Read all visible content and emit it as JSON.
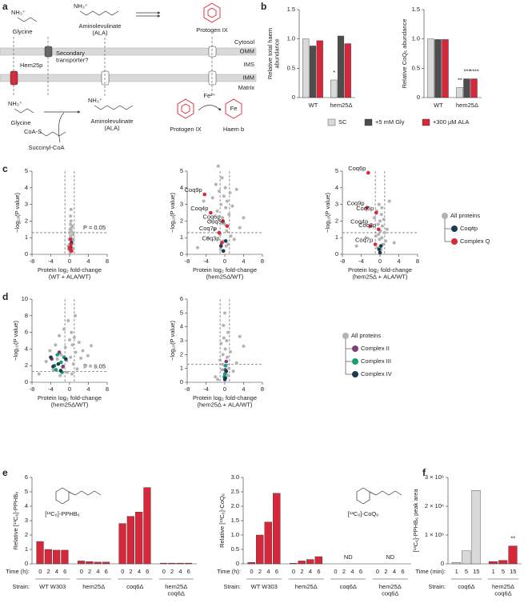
{
  "diagram": {
    "panel_label": "a",
    "nh3_top": "NH₃⁺",
    "glycine_top": "Glycine",
    "nh3_ala_top": "NH₃⁺",
    "ala_top": "Aminolevulinate\n(ALA)",
    "protogen_top": "Protogen IX",
    "cytosol": "Cytosol",
    "omm": "OMM",
    "ims": "IMS",
    "imm": "IMM",
    "matrix": "Matrix",
    "hem25p": "Hem25p",
    "transporter": "Secondary\ntransporter?",
    "nh3_bottom": "NH₃⁺",
    "glycine_bottom": "Glycine",
    "nh3_ala_bottom": "NH₃⁺",
    "ala_bottom": "Aminolevulinate\n(ALA)",
    "coa": "CoA-S",
    "succinyl": "Succinyl-CoA",
    "protogen_bottom": "Protogen IX",
    "fe": "Fe²⁺",
    "fe_ring": "Fe",
    "haem": "Haem b"
  },
  "panel_labels": {
    "b": "b",
    "c": "c",
    "d": "d",
    "e": "e",
    "f": "f"
  },
  "chart_data": [
    {
      "type": "bar",
      "ylabel": "Relative total haem\nabundance",
      "categories": [
        "WT",
        "hem25Δ"
      ],
      "series": [
        {
          "name": "SC",
          "color": "#d9d9d9",
          "values": [
            1.0,
            0.3
          ],
          "significance": [
            null,
            "*"
          ]
        },
        {
          "name": "+5 mM Gly",
          "color": "#4d4d4d",
          "values": [
            0.88,
            1.05
          ],
          "significance": [
            null,
            null
          ]
        },
        {
          "name": "+300 µM ALA",
          "color": "#d6283a",
          "values": [
            0.97,
            0.92
          ],
          "significance": [
            null,
            null
          ]
        }
      ],
      "ylim": [
        0,
        1.5
      ],
      "yticks": [
        0,
        0.5,
        {
          "value": 1,
          "label": "1.0"
        },
        1.5
      ],
      "legend": "bottom"
    },
    {
      "type": "bar",
      "ylabel": "Relative CoQ₆ abundance",
      "categories": [
        "WT",
        "hem25Δ"
      ],
      "series": [
        {
          "color": "#d9d9d9",
          "values": [
            1.0,
            0.17
          ],
          "significance": [
            null,
            "**"
          ]
        },
        {
          "color": "#4d4d4d",
          "values": [
            0.99,
            0.32
          ],
          "significance": [
            null,
            "***"
          ]
        },
        {
          "color": "#d6283a",
          "values": [
            0.99,
            0.32
          ],
          "significance": [
            null,
            "****"
          ]
        }
      ],
      "ylim": [
        0,
        1.5
      ],
      "yticks": [
        0,
        0.5,
        {
          "value": 1,
          "label": "1.0"
        },
        1.5
      ]
    },
    {
      "type": "scatter",
      "xlabel": "Protein log₂ fold-change\n(WT + ALA/WT)",
      "ylabel": "−log₁₀(P value)",
      "xlim": [
        -8,
        8
      ],
      "xticks": [
        -8,
        -4,
        0,
        4,
        8
      ],
      "ylim": [
        0,
        5
      ],
      "yticks": [
        0,
        1,
        2,
        3,
        4,
        5
      ],
      "vlines": [
        -1,
        1
      ],
      "hline": 1.3,
      "hline_label": "P = 0.05",
      "series": [
        {
          "color": "#b3b3b3",
          "x": [
            0.1,
            0.3,
            -0.2,
            0.5,
            0.2,
            0.4,
            0.0,
            0.6,
            -0.1,
            0.3,
            0.2,
            0.7,
            0.5,
            0.1,
            0.4,
            0.3,
            -0.3,
            0.2,
            0.6,
            0.0,
            0.8,
            0.3,
            0.1,
            0.4
          ],
          "values": [
            0.2,
            0.5,
            0.3,
            0.8,
            1.1,
            1.4,
            0.6,
            1.7,
            0.9,
            2.0,
            2.3,
            1.2,
            0.4,
            1.5,
            0.7,
            1.0,
            0.5,
            1.8,
            0.3,
            1.3,
            0.9,
            2.7,
            0.1,
            1.6
          ]
        },
        {
          "color": "#1d3a4f",
          "x": [
            0.2,
            0.4
          ],
          "values": [
            0.4,
            0.7
          ]
        },
        {
          "color": "#d6283a",
          "x": [
            0.1,
            0.3,
            0.2,
            0.0,
            0.4
          ],
          "values": [
            0.3,
            0.6,
            0.9,
            0.4,
            0.2
          ]
        }
      ]
    },
    {
      "type": "scatter",
      "xlabel": "Protein log₂ fold-change\n(hem25Δ/WT)",
      "ylabel": "−log₁₀(P value)",
      "xlim": [
        -8,
        8
      ],
      "xticks": [
        -8,
        -4,
        0,
        4,
        8
      ],
      "ylim": [
        0,
        5
      ],
      "yticks": [
        0,
        1,
        2,
        3,
        4,
        5
      ],
      "vlines": [
        -1,
        1
      ],
      "hline": 1.3,
      "series": [
        {
          "color": "#b3b3b3",
          "x": [
            -5.8,
            -4.5,
            -3.6,
            -3.0,
            -2.6,
            -2.2,
            -1.9,
            -1.6,
            -1.4,
            -1.2,
            -1.0,
            -0.8,
            -0.6,
            -0.5,
            -0.3,
            -0.2,
            0,
            0.1,
            0.2,
            0.4,
            0.5,
            0.7,
            0.9,
            1.1,
            1.3,
            1.6,
            2.0,
            2.5,
            3.2,
            4.0,
            -0.9,
            0.3
          ],
          "values": [
            0.4,
            3.2,
            1.0,
            2.0,
            3.4,
            1.5,
            4.2,
            2.6,
            5.3,
            3.8,
            1.2,
            3.0,
            4.6,
            2.2,
            0.8,
            3.5,
            1.8,
            4.0,
            2.8,
            1.4,
            3.2,
            0.6,
            2.4,
            3.7,
            1.1,
            2.9,
            0.9,
            3.9,
            1.6,
            2.2,
            0.3,
            0.5
          ]
        },
        {
          "color": "#1d3a4f",
          "x": [
            -0.8,
            -0.3,
            0.2
          ],
          "values": [
            0.5,
            0.2,
            0.8
          ]
        },
        {
          "color": "#d6283a",
          "x": [
            -4.3,
            -3.0,
            -0.4,
            0.5,
            -1.2,
            -0.6
          ],
          "values": [
            3.6,
            2.5,
            2.0,
            1.7,
            1.3,
            0.7
          ],
          "labels": [
            "Coq9p",
            "Coq4p",
            "Coq6p",
            "Coq5p",
            "Coq7p",
            "Coq3p"
          ]
        }
      ]
    },
    {
      "type": "scatter",
      "xlabel": "Protein log₂ fold-change\n(hem25Δ + ALA/WT)",
      "ylabel": "−log₁₀(P value)",
      "xlim": [
        -8,
        8
      ],
      "xticks": [
        -8,
        -4,
        0,
        4,
        8
      ],
      "ylim": [
        0,
        5
      ],
      "yticks": [
        0,
        1,
        2,
        3,
        4,
        5
      ],
      "vlines": [
        -1,
        1
      ],
      "hline": 1.3,
      "legend": "right",
      "series": [
        {
          "name": "All proteins",
          "color": "#b3b3b3",
          "x": [
            -5.0,
            -3.0,
            -1.2,
            -0.9,
            -0.7,
            -0.5,
            -0.4,
            -0.2,
            -0.1,
            0,
            0.1,
            0.2,
            0.3,
            0.4,
            0.5,
            0.6,
            0.8,
            1.0,
            1.2,
            1.5,
            2.0,
            3.0,
            -0.3,
            0.0,
            0.4
          ],
          "values": [
            0.5,
            1.0,
            2.2,
            1.1,
            2.6,
            0.4,
            1.8,
            3.0,
            0.9,
            2.0,
            1.4,
            0.3,
            2.4,
            1.0,
            1.7,
            0.6,
            2.1,
            1.3,
            0.8,
            1.5,
            3.2,
            0.7,
            1.2,
            0.2,
            2.8
          ]
        },
        {
          "name": "Coq#p",
          "color": "#1d3a4f",
          "x": [
            -0.2,
            0.2,
            0.0
          ],
          "values": [
            0.3,
            0.5,
            0.1
          ]
        },
        {
          "name": "Complex Q",
          "color": "#d6283a",
          "x": [
            -2.5,
            -2.8,
            -0.8,
            -2.0,
            -0.3,
            -1.0
          ],
          "values": [
            4.9,
            2.8,
            2.5,
            1.7,
            1.5,
            0.6
          ],
          "labels": [
            "Coq6p",
            "Coq9p",
            "Coq5p",
            "Coq4p",
            "Coq3p",
            "Coq7p"
          ]
        }
      ]
    },
    {
      "type": "scatter",
      "xlabel": "Protein log₂ fold-change\n(hem25Δ/WT)",
      "ylabel": "−log₁₀(P value)",
      "xlim": [
        -8,
        8
      ],
      "xticks": [
        -8,
        -4,
        0,
        4,
        8
      ],
      "ylim": [
        0,
        10
      ],
      "yticks": [
        0,
        2,
        4,
        6,
        8,
        10
      ],
      "vlines": [
        -1,
        1
      ],
      "hline": 1.3,
      "hline_label": "P = 0.05",
      "series": [
        {
          "color": "#b3b3b3",
          "x": [
            -6.5,
            -5.0,
            -4.2,
            -3.5,
            -3.0,
            -2.6,
            -2.2,
            -1.8,
            -1.5,
            -1.2,
            -0.9,
            -0.6,
            -0.3,
            0,
            0.2,
            0.4,
            0.6,
            0.8,
            1.0,
            1.3,
            1.6,
            2.0,
            2.4,
            2.8,
            3.3,
            3.9,
            4.6,
            5.5,
            -0.5,
            0.5,
            1.2,
            -2.0
          ],
          "values": [
            1.0,
            2.5,
            3.8,
            1.5,
            4.5,
            2.8,
            5.6,
            3.3,
            1.8,
            6.4,
            4.2,
            2.6,
            7.4,
            5.1,
            3.0,
            6.0,
            4.5,
            2.2,
            5.4,
            3.6,
            1.6,
            4.8,
            2.9,
            3.8,
            1.9,
            3.2,
            4.4,
            2.0,
            1.2,
            1.0,
            8.0,
            0.8
          ]
        },
        {
          "color": "#7b3f7b",
          "x": [
            -3.8,
            -2.2,
            -1.4
          ],
          "values": [
            2.8,
            3.6,
            1.9
          ]
        },
        {
          "color": "#1a9e77",
          "x": [
            -3.2,
            -2.6,
            -1.8,
            -1.2,
            -2.9,
            -1.6
          ],
          "values": [
            2.0,
            3.3,
            2.4,
            3.0,
            1.5,
            1.2
          ]
        },
        {
          "color": "#1d3a4f",
          "x": [
            -4.0,
            -2.4,
            -1.9,
            -0.8,
            -3.5
          ],
          "values": [
            3.0,
            2.2,
            1.4,
            2.8,
            1.9
          ]
        }
      ]
    },
    {
      "type": "scatter",
      "xlabel": "Protein log₂ fold-change\n(hem25Δ + ALA/WT)",
      "ylabel": "−log₁₀(P value)",
      "xlim": [
        -8,
        8
      ],
      "xticks": [
        -8,
        -4,
        0,
        4,
        8
      ],
      "ylim": [
        0,
        6
      ],
      "yticks": [
        0,
        1,
        2,
        3,
        4,
        5,
        6
      ],
      "vlines": [
        -1,
        1
      ],
      "hline": 1.3,
      "legend": "right",
      "series": [
        {
          "name": "All proteins",
          "color": "#b3b3b3",
          "x": [
            -2.0,
            -1.0,
            -0.8,
            -0.6,
            -0.4,
            -0.2,
            0,
            0.1,
            0.3,
            0.5,
            0.7,
            0.9,
            1.2,
            1.8,
            2.5,
            4.0,
            -0.3,
            0.2,
            0.4,
            -0.5,
            0.0,
            0.6,
            3.2,
            -1.5
          ],
          "values": [
            0.4,
            1.6,
            2.8,
            0.9,
            2.0,
            3.2,
            1.2,
            2.4,
            0.6,
            1.8,
            3.6,
            1.0,
            2.2,
            0.8,
            1.4,
            2.6,
            4.1,
            0.3,
            3.0,
            1.3,
            5.0,
            0.5,
            3.3,
            0.2
          ]
        },
        {
          "name": "Complex II",
          "color": "#7b3f7b",
          "x": [
            0.1,
            0.3
          ],
          "values": [
            0.9,
            1.5
          ]
        },
        {
          "name": "Complex III",
          "color": "#1a9e77",
          "x": [
            0.0,
            0.2,
            -0.1
          ],
          "values": [
            0.6,
            1.2,
            0.4
          ]
        },
        {
          "name": "Complex IV",
          "color": "#1d3a4f",
          "x": [
            0.1,
            0.3,
            0.0
          ],
          "values": [
            0.3,
            0.8,
            0.2
          ]
        }
      ]
    },
    {
      "type": "timebar",
      "ylabel": "Relative [¹³C₆]-PPHB₆",
      "time_label": "Time (h):",
      "strain_label": "Strain:",
      "compound_label": "[¹³C₆]-PPHB₆",
      "categories": [
        "WT W303",
        "hem25Δ",
        "coq6Δ",
        "hem25Δ\ncoq6Δ"
      ],
      "times": [
        0,
        2,
        4,
        6
      ],
      "values": [
        [
          1.55,
          1.0,
          0.95,
          0.95
        ],
        [
          0.2,
          0.15,
          0.12,
          0.12
        ],
        [
          2.8,
          3.3,
          3.6,
          5.3
        ],
        [
          0.05,
          0.05,
          0.05,
          0.05
        ]
      ],
      "color": "#d6283a",
      "ylim": [
        0,
        6
      ],
      "yticks": [
        0,
        1,
        2,
        3,
        4,
        5,
        6
      ]
    },
    {
      "type": "timebar",
      "ylabel": "Relative [¹³C₆]-CoQ₆",
      "time_label": "Time (h):",
      "strain_label": "Strain:",
      "compound_label": "[¹³C₆]-CoQ₆",
      "categories": [
        "WT W303",
        "hem25Δ",
        "coq6Δ",
        "hem25Δ\ncoq6Δ"
      ],
      "times": [
        0,
        2,
        4,
        6
      ],
      "values": [
        [
          0.05,
          1.0,
          1.45,
          2.45
        ],
        [
          0.02,
          0.1,
          0.15,
          0.25
        ],
        [
          null,
          null,
          null,
          null
        ],
        [
          null,
          null,
          null,
          null
        ]
      ],
      "notes": [
        null,
        null,
        "ND",
        "ND"
      ],
      "color": "#d6283a",
      "ylim": [
        0,
        3
      ],
      "yticks": [
        0,
        0.5,
        {
          "value": 1,
          "label": "1.0"
        },
        1.5,
        {
          "value": 2,
          "label": "2.0"
        },
        2.5,
        {
          "value": 3,
          "label": "3.0"
        }
      ]
    },
    {
      "type": "timebar",
      "ylabel": "[¹³C₆]-PPHB₆ peak area",
      "time_label": "Time (min):",
      "strain_label": "Strain:",
      "categories": [
        "coq6Δ",
        "hem25Δ\ncoq6Δ"
      ],
      "times": [
        1,
        5,
        15
      ],
      "values": [
        [
          50000,
          450000,
          2550000
        ],
        [
          80000,
          120000,
          620000
        ]
      ],
      "significance": [
        [
          null,
          null,
          null
        ],
        [
          null,
          null,
          "**"
        ]
      ],
      "colors": [
        "#d9d9d9",
        "#d6283a"
      ],
      "ylim": [
        0,
        3000000
      ],
      "yticks": [
        0,
        {
          "value": 1000000,
          "label": "1 × 10⁶"
        },
        {
          "value": 2000000,
          "label": "2 × 10⁶"
        },
        {
          "value": 3000000,
          "label": "3 × 10⁶"
        }
      ]
    }
  ]
}
